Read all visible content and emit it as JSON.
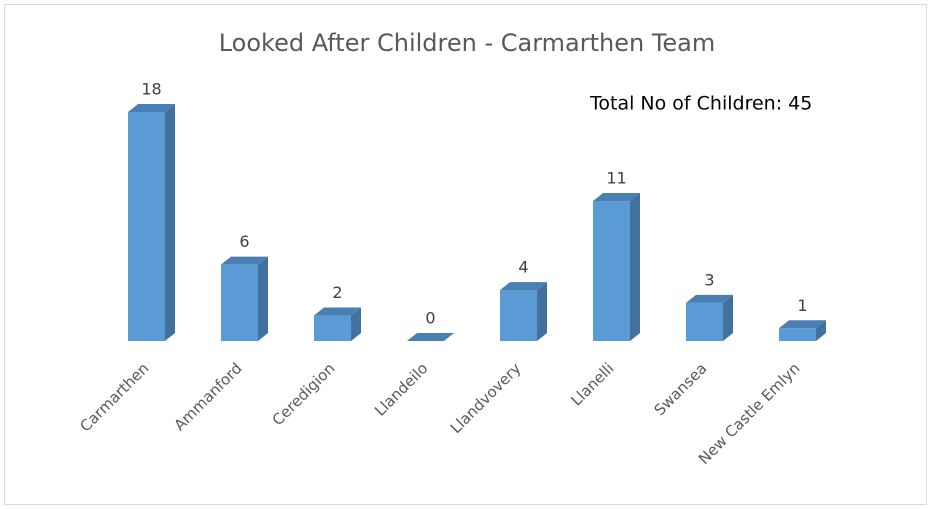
{
  "chart_data": {
    "type": "bar3d",
    "title": "Looked After Children - Carmarthen Team",
    "annotation": "Total No of Children: 45",
    "categories": [
      "Carmarthen",
      "Ammanford",
      "Ceredigion",
      "Llandeilo",
      "Llandvovery",
      "Llanelli",
      "Swansea",
      "New Castle Emlyn"
    ],
    "values": [
      18,
      6,
      2,
      0,
      4,
      11,
      3,
      1
    ],
    "color": "#5b9bd5"
  }
}
